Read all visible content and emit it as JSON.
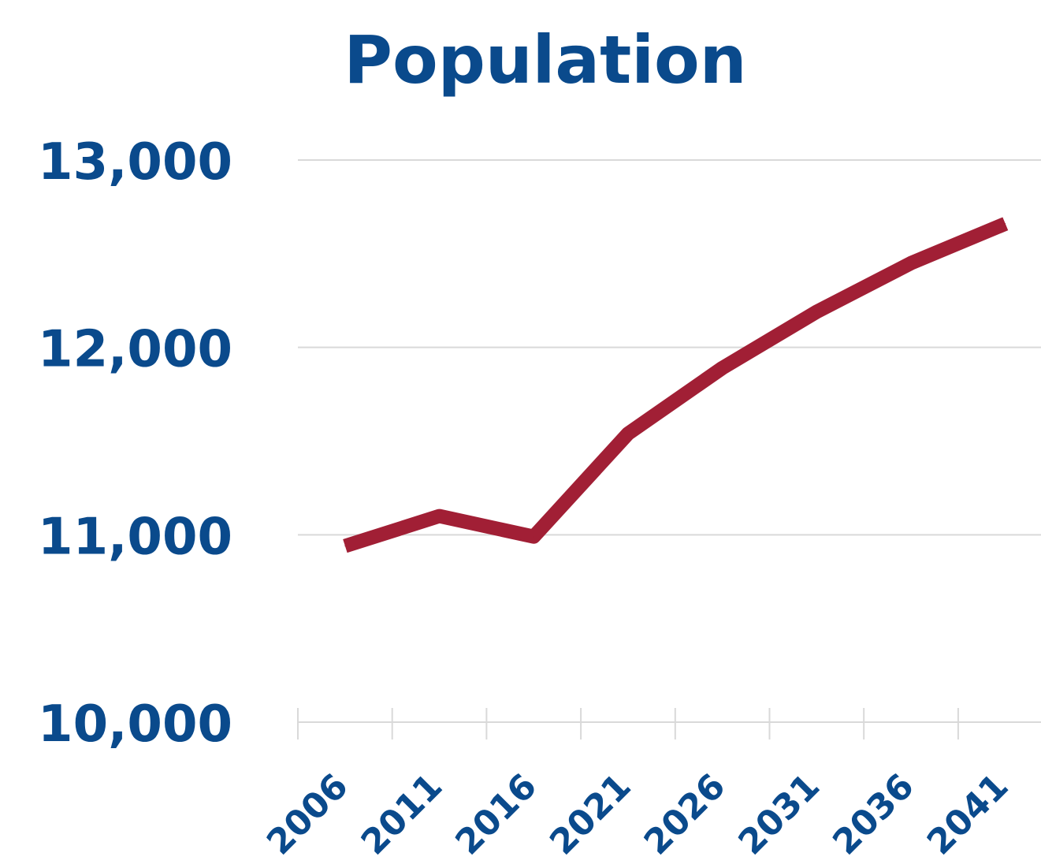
{
  "colors": {
    "text": "#0a4a8c",
    "line": "#a11f35",
    "grid": "#d9d9d9"
  },
  "chart_data": {
    "type": "line",
    "title": "Population",
    "xlabel": "",
    "ylabel": "",
    "categories": [
      "2006",
      "2011",
      "2016",
      "2021",
      "2026",
      "2031",
      "2036",
      "2041"
    ],
    "series": [
      {
        "values": [
          10940,
          11100,
          10990,
          11540,
          11890,
          12190,
          12450,
          12660
        ]
      }
    ],
    "ylim": [
      10000,
      13000
    ],
    "yticks": [
      "10,000",
      "11,000",
      "12,000",
      "13,000"
    ],
    "grid": true,
    "legend": "none"
  }
}
